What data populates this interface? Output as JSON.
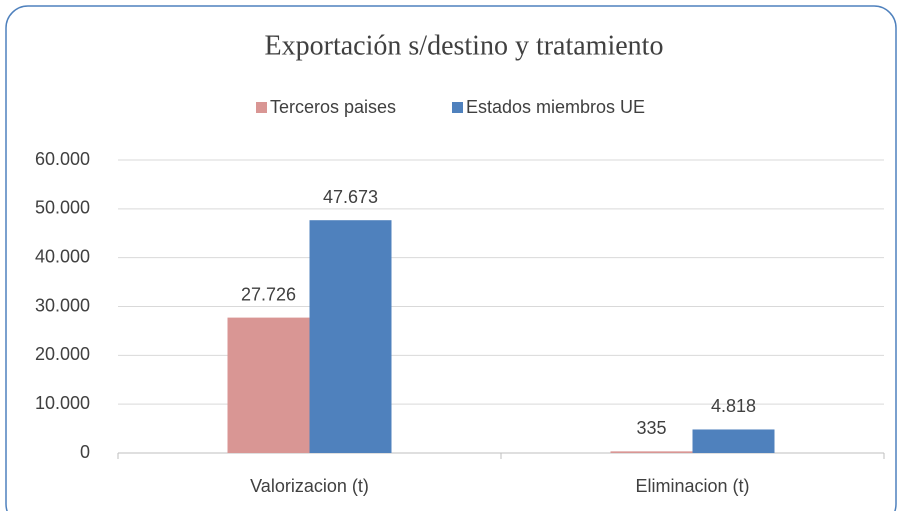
{
  "chart_data": {
    "type": "bar",
    "title": "Exportación  s/destino y tratamiento",
    "categories": [
      "Valorizacion (t)",
      "Eliminacion (t)"
    ],
    "series": [
      {
        "name": "Terceros paises",
        "color": "#d99694",
        "values": [
          27726,
          335
        ],
        "value_labels": [
          "27.726",
          "335"
        ]
      },
      {
        "name": "Estados miembros UE",
        "color": "#4f81bd",
        "values": [
          47673,
          4818
        ],
        "value_labels": [
          "47.673",
          "4.818"
        ]
      }
    ],
    "ylim": [
      0,
      60000
    ],
    "yticks": [
      0,
      {
        "value": 10000,
        "label": "10.000"
      },
      {
        "value": 20000,
        "label": "20.000"
      },
      {
        "value": 30000,
        "label": "30.000"
      },
      {
        "value": 40000,
        "label": "40.000"
      },
      {
        "value": 50000,
        "label": "50.000"
      },
      {
        "value": 60000,
        "label": "60.000"
      }
    ],
    "grid": true,
    "legend": "top"
  }
}
